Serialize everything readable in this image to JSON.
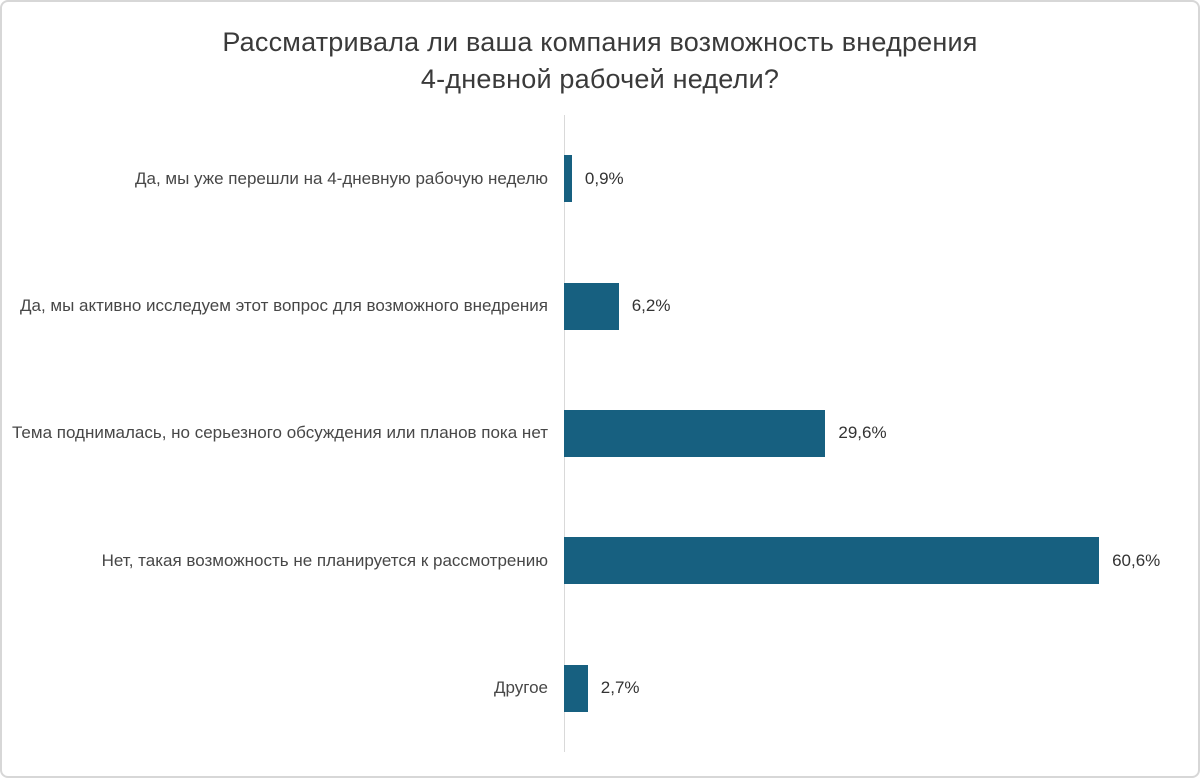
{
  "header": {
    "title_lines": [
      "Рассматривала ли ваша компания возможность внедрения",
      "4-дневной рабочей недели?"
    ]
  },
  "chart_data": {
    "type": "bar",
    "orientation": "horizontal",
    "title": "Рассматривала ли ваша компания возможность внедрения 4-дневной рабочей недели?",
    "categories": [
      "Да, мы уже перешли на 4-дневную рабочую неделю",
      "Да, мы активно исследуем этот вопрос для возможного внедрения",
      "Тема поднималась, но серьезного обсуждения или планов пока нет",
      "Нет, такая возможность не планируется к рассмотрению",
      "Другое"
    ],
    "values": [
      0.9,
      6.2,
      29.6,
      60.6,
      2.7
    ],
    "value_labels": [
      "0,9%",
      "6,2%",
      "29,6%",
      "60,6%",
      "2,7%"
    ],
    "xlabel": "",
    "ylabel": "",
    "xlim": [
      0,
      65
    ],
    "grid": false,
    "legend": false,
    "bar_color": "#176080",
    "axis_line_color": "#d9d9d9",
    "category_text_color": "#474747",
    "value_text_color": "#333333",
    "title_color": "#3a3a3a"
  }
}
